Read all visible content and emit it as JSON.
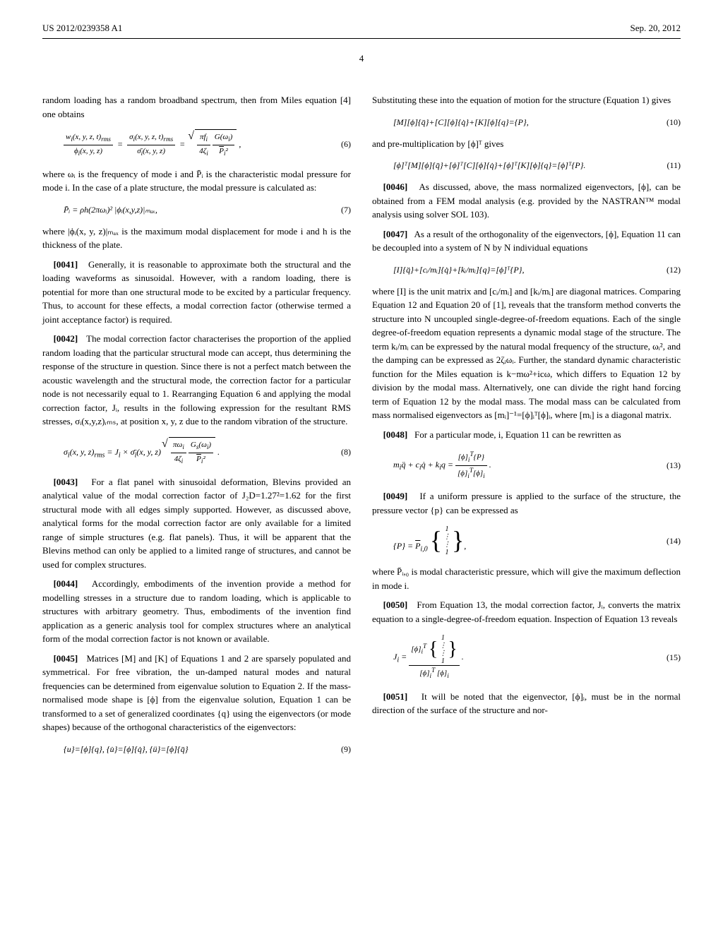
{
  "header": {
    "left": "US 2012/0239358 A1",
    "right": "Sep. 20, 2012"
  },
  "page_number": "4",
  "col1": {
    "p1": "random loading has a random broadband spectrum, then from Miles equation [4] one obtains",
    "eq6": "wᵢ(x, y, z, t)ᵣₘₛ / ϕᵢ(x, y, z) = σᵢ(x, y, z, t)ᵣₘₛ / σ̄ᵢ(x, y, z) = √( (πfᵢ / 4ζᵢ) · (G(ωᵢ) / P̄ᵢ²) ) ,",
    "eq6_num": "(6)",
    "p2": "where ωᵢ is the frequency of mode i and P̄ᵢ is the characteristic modal pressure for mode i. In the case of a plate structure, the modal pressure is calculated as:",
    "eq7": "P̄ᵢ = ρh(2πωᵢ)² |ϕᵢ(x,y,z)|ₘₐₓ,",
    "eq7_num": "(7)",
    "p3": "where |ϕᵢ(x, y, z)|ₘₐₓ is the maximum modal displacement for mode i and h is the thickness of the plate.",
    "p4_num": "[0041]",
    "p4": "Generally, it is reasonable to approximate both the structural and the loading waveforms as sinusoidal. However, with a random loading, there is potential for more than one structural mode to be excited by a particular frequency. Thus, to account for these effects, a modal correction factor (otherwise termed a joint acceptance factor) is required.",
    "p5_num": "[0042]",
    "p5": "The modal correction factor characterises the proportion of the applied random loading that the particular structural mode can accept, thus determining the response of the structure in question. Since there is not a perfect match between the acoustic wavelength and the structural mode, the correction factor for a particular node is not necessarily equal to 1. Rearranging Equation 6 and applying the modal correction factor, Jᵢ, results in the following expression for the resultant RMS stresses, σᵢ(x,y,z)ᵣₘₛ, at position x, y, z due to the random vibration of the structure.",
    "eq8": "σᵢ(x, y, z)ᵣₘₛ = Jᵢ × σ̄ᵢ(x, y, z) √( (πωᵢ / 4ζᵢ) · (Gₛ(ωᵢ) / P̄ᵢ²) ) .",
    "eq8_num": "(8)",
    "p6_num": "[0043]",
    "p6": "For a flat panel with sinusoidal deformation, Blevins provided an analytical value of the modal correction factor of J₂D=1.27²=1.62 for the first structural mode with all edges simply supported. However, as discussed above, analytical forms for the modal correction factor are only available for a limited range of simple structures (e.g. flat panels). Thus, it will be apparent that the Blevins method can only be applied to a limited range of structures, and cannot be used for complex structures.",
    "p7_num": "[0044]",
    "p7": "Accordingly, embodiments of the invention provide a method for modelling stresses in a structure due to random loading, which is applicable to structures with arbitrary geometry. Thus, embodiments of the invention find application as a generic analysis tool for complex structures where an analytical form of the modal correction factor is not known or available.",
    "p8_num": "[0045]",
    "p8": "Matrices [M] and [K] of Equations 1 and 2 are sparsely populated and symmetrical. For free vibration, the un-damped natural modes and natural frequencies can be determined from eigenvalue solution to Equation 2. If the mass-normalised mode shape is [ϕ] from the eigenvalue solution, Equation 1 can be transformed to a set of generalized coordinates {q} using the eigenvectors (or mode shapes) because of the orthogonal characteristics of the eigenvectors:",
    "eq9": "{u}=[ϕ]{q}, {u̇}=[ϕ]{q̇}, {ü}=[ϕ]{q̈}",
    "eq9_num": "(9)"
  },
  "col2": {
    "p1": "Substituting these into the equation of motion for the structure (Equation 1) gives",
    "eq10": "[M][ϕ]{q̈}+[C][ϕ]{q̇}+[K][ϕ]{q}={P},",
    "eq10_num": "(10)",
    "p2": "and pre-multiplication by [ϕ]ᵀ gives",
    "eq11": "[ϕ]ᵀ[M][ϕ]{q̈}+[ϕ]ᵀ[C][ϕ]{q̇}+[ϕ]ᵀ[K][ϕ]{q}=[ϕ]ᵀ{P}.",
    "eq11_num": "(11)",
    "p3_num": "[0046]",
    "p3": "As discussed, above, the mass normalized eigenvectors, [ϕ], can be obtained from a FEM modal analysis (e.g. provided by the NASTRAN™ modal analysis using solver SOL 103).",
    "p4_num": "[0047]",
    "p4": "As a result of the orthogonality of the eigenvectors, [ϕ], Equation 11 can be decoupled into a system of N by N individual equations",
    "eq12": "[I]{q̈}+[cᵢ/mᵢ]{q̇}+[kᵢ/mᵢ]{q}=[ϕ]ᵀ{P},",
    "eq12_num": "(12)",
    "p5": "where [I] is the unit matrix and [cᵢ/mᵢ] and [kᵢ/mᵢ] are diagonal matrices. Comparing Equation 12 and Equation 20 of [1], reveals that the transform method converts the structure into N uncoupled single-degree-of-freedom equations. Each of the single degree-of-freedom equation represents a dynamic modal stage of the structure. The term kᵢ/mᵢ can be expressed by the natural modal frequency of the structure, ωᵢ², and the damping can be expressed as 2ζᵢωᵢ. Further, the standard dynamic characteristic function for the Miles equation is k−mω²+icω, which differs to Equation 12 by division by the modal mass. Alternatively, one can divide the right hand forcing term of Equation 12 by the modal mass. The modal mass can be calculated from mass normalised eigenvectors as [mᵢ]⁻¹=[ϕ]ᵢᵀ[ϕ]ᵢ, where [mᵢ] is a diagonal matrix.",
    "p6_num": "[0048]",
    "p6": "For a particular mode, i, Equation 11 can be rewritten as",
    "eq13": "mᵢq̈ + cᵢq̇ + kᵢq = [ϕ]ᵢᵀ{P} / [ϕ]ᵢᵀ[ϕ]ᵢ .",
    "eq13_num": "(13)",
    "p7_num": "[0049]",
    "p7": "If a uniform pressure is applied to the surface of the structure, the pressure vector {p} can be expressed as",
    "eq14_pre": "{P} = P̄ᵢ,₀",
    "eq14_num": "(14)",
    "p8": "where P̄ᵢ,₀ is modal characteristic pressure, which will give the maximum deflection in mode i.",
    "p9_num": "[0050]",
    "p9": "From Equation 13, the modal correction factor, Jᵢ, converts the matrix equation to a single-degree-of-freedom equation. Inspection of Equation 13 reveals",
    "eq15_pre": "Jᵢ =",
    "eq15_num_top": "[ϕ]ᵢᵀ",
    "eq15_den": "[ϕ]ᵢᵀ [ϕ]ᵢ .",
    "eq15_num": "(15)",
    "p10_num": "[0051]",
    "p10": "It will be noted that the eigenvector, [ϕ]ᵢ, must be in the normal direction of the surface of the structure and nor-"
  }
}
